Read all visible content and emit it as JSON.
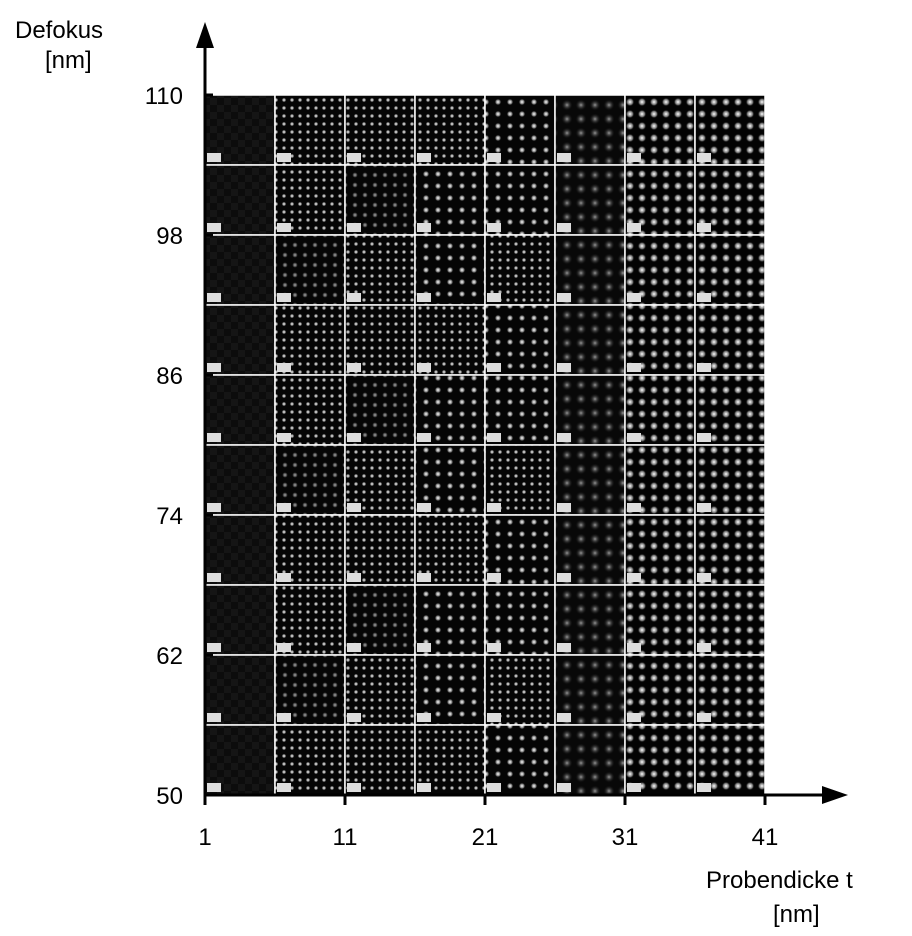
{
  "chart_data": {
    "type": "image-grid",
    "y_label": "Defokus",
    "y_unit": "[nm]",
    "x_label": "Probendicke t",
    "x_unit": "[nm]",
    "xlim": [
      1,
      41
    ],
    "xticks": [
      1,
      11,
      21,
      31,
      41
    ],
    "ylim": [
      50,
      110
    ],
    "yticks": [
      50,
      62,
      74,
      86,
      98,
      110
    ]
  }
}
